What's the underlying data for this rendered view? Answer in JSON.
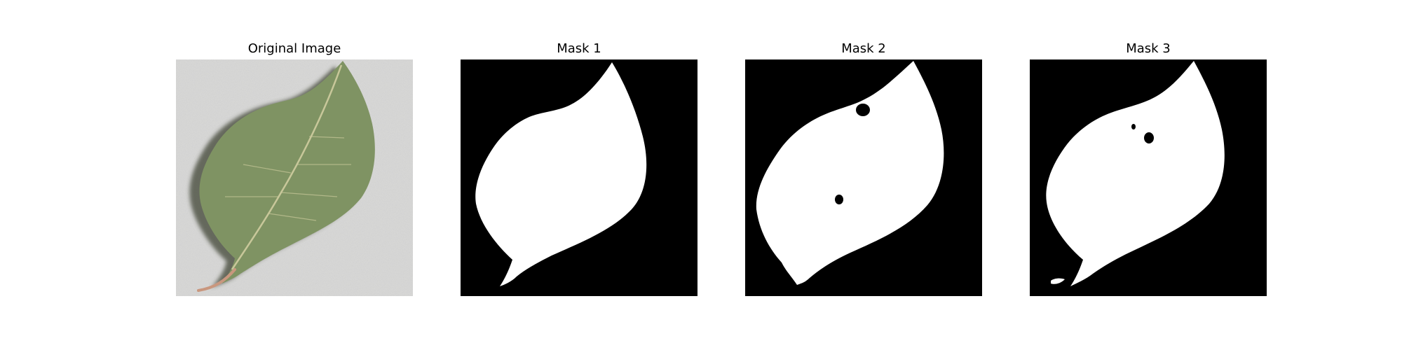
{
  "figure": {
    "background": "#ffffff",
    "panels": [
      {
        "id": "original",
        "title": "Original Image",
        "kind": "photo",
        "background_color": "#d7d7d6",
        "leaf_color": "#7f9363",
        "leaf_shadow_color": "#3f4536",
        "vein_color": "#c8c79a",
        "stem_color": "#c9977e"
      },
      {
        "id": "mask-1",
        "title": "Mask 1",
        "kind": "mask",
        "background_color": "#000000",
        "foreground_color": "#ffffff",
        "holes": 0
      },
      {
        "id": "mask-2",
        "title": "Mask 2",
        "kind": "mask",
        "background_color": "#000000",
        "foreground_color": "#ffffff",
        "holes": 2
      },
      {
        "id": "mask-3",
        "title": "Mask 3",
        "kind": "mask",
        "background_color": "#000000",
        "foreground_color": "#ffffff",
        "holes": 2
      }
    ]
  }
}
